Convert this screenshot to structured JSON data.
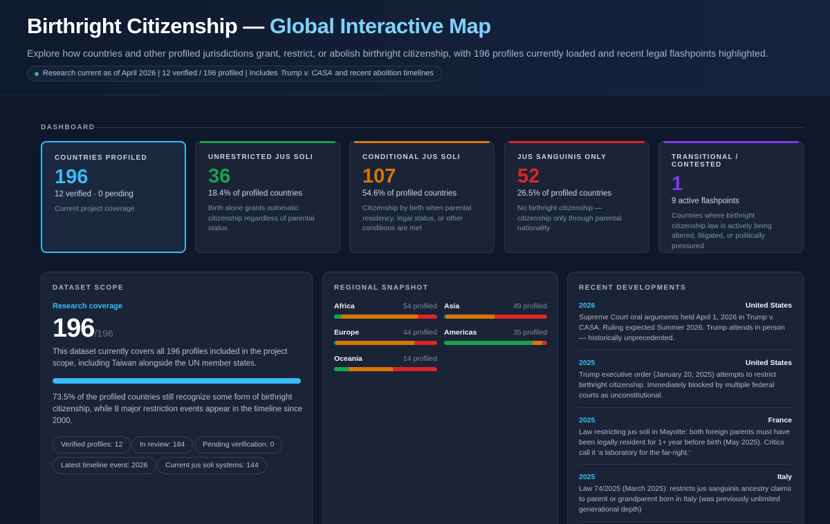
{
  "header": {
    "title_main": "Birthright Citizenship — ",
    "title_accent": "Global Interactive Map",
    "subtitle": "Explore how countries and other profiled jurisdictions grant, restrict, or abolish birthright citizenship, with 196 profiles currently loaded and recent legal flashpoints highlighted.",
    "pill_pre": "Research current as of April 2026  |  12 verified / 196 profiled  |  Includes",
    "pill_em": "Trump v. CASA",
    "pill_post": "and recent abolition timelines"
  },
  "dashboard_label": "DASHBOARD",
  "cards": [
    {
      "label": "COUNTRIES PROFILED",
      "value": "196",
      "sub": "12 verified · 0 pending",
      "desc": "Current project coverage",
      "color": "#38bdf8"
    },
    {
      "label": "UNRESTRICTED JUS SOLI",
      "value": "36",
      "sub": "18.4% of profiled countries",
      "desc": "Birth alone grants automatic citizenship regardless of parental status",
      "color": "#16a34a"
    },
    {
      "label": "CONDITIONAL JUS SOLI",
      "value": "107",
      "sub": "54.6% of profiled countries",
      "desc": "Citizenship by birth when parental residency, legal status, or other conditions are met",
      "color": "#d97706"
    },
    {
      "label": "JUS SANGUINIS ONLY",
      "value": "52",
      "sub": "26.5% of profiled countries",
      "desc": "No birthright citizenship — citizenship only through parental nationality",
      "color": "#dc2626"
    },
    {
      "label": "TRANSITIONAL / CONTESTED",
      "value": "1",
      "sub": "9 active flashpoints",
      "desc": "Countries where birthright citizenship law is actively being altered, litigated, or politically pressured",
      "color": "#7c3aed"
    }
  ],
  "scope": {
    "label": "DATASET SCOPE",
    "coverage_label": "Research coverage",
    "count": "196",
    "total": "/196",
    "coverage_fraction": 1.0,
    "p1": "This dataset currently covers all 196 profiles included in the project scope, including Taiwan alongside the UN member states.",
    "p2": "73.5% of the profiled countries still recognize some form of birthright citizenship, while 8 major restriction events appear in the timeline since 2000.",
    "chips": [
      "Verified profiles: 12",
      "In review: 184",
      "Pending verification: 0",
      "Latest timeline event: 2026",
      "Current jus soli systems: 144"
    ]
  },
  "regional": {
    "label": "REGIONAL SNAPSHOT",
    "regions": [
      {
        "name": "Africa",
        "count": "54 profiled",
        "shares": [
          0.07,
          0.74,
          0.19
        ]
      },
      {
        "name": "Asia",
        "count": "49 profiled",
        "shares": [
          0.02,
          0.47,
          0.51
        ]
      },
      {
        "name": "Europe",
        "count": "44 profiled",
        "shares": [
          0.02,
          0.76,
          0.22
        ]
      },
      {
        "name": "Americas",
        "count": "35 profiled",
        "shares": [
          0.86,
          0.09,
          0.05
        ]
      },
      {
        "name": "Oceania",
        "count": "14 profiled",
        "shares": [
          0.14,
          0.43,
          0.43
        ]
      }
    ],
    "bar_colors": [
      "#16a34a",
      "#d97706",
      "#dc2626"
    ]
  },
  "developments": {
    "label": "RECENT DEVELOPMENTS",
    "items": [
      {
        "year": "2026",
        "country": "United States",
        "text": "Supreme Court oral arguments held April 1, 2026 in Trump v. CASA. Ruling expected Summer 2026. Trump attends in person — historically unprecedented."
      },
      {
        "year": "2025",
        "country": "United States",
        "text": "Trump executive order (January 20, 2025) attempts to restrict birthright citizenship. Immediately blocked by multiple federal courts as unconstitutional."
      },
      {
        "year": "2025",
        "country": "France",
        "text": "Law restricting jus soli in Mayotte: both foreign parents must have been legally resident for 1+ year before birth (May 2025). Critics call it 'a laboratory for the far-right.'"
      },
      {
        "year": "2025",
        "country": "Italy",
        "text": "Law 74/2025 (March 2025): restricts jus sanguinis ancestry claims to parent or grandparent born in Italy (was previously unlimited generational depth)"
      }
    ]
  }
}
